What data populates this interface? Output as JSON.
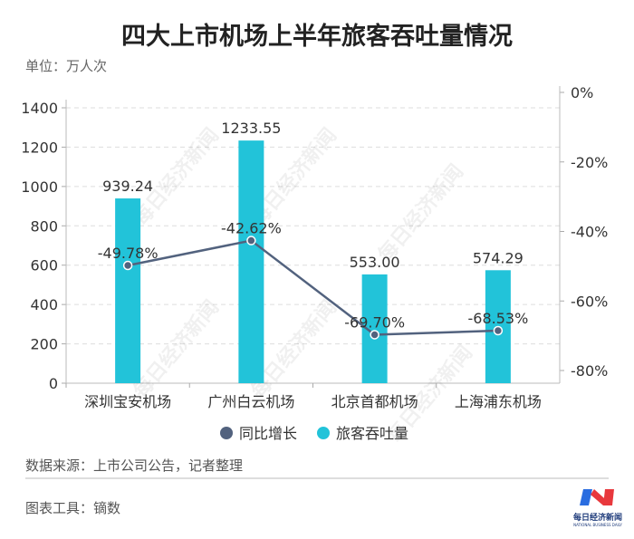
{
  "title": "四大上市机场上半年旅客吞吐量情况",
  "unit": "单位：万人次",
  "source": "数据来源：上市公司公告，记者整理",
  "tool": "图表工具：镝数",
  "logo": {
    "cn": "每日经济新闻",
    "en": "NATIONAL BUSINESS DAILY"
  },
  "watermark": "每日经济新闻",
  "chart_data": {
    "type": "bar+line",
    "categories": [
      "深圳宝安机场",
      "广州白云机场",
      "北京首都机场",
      "上海浦东机场"
    ],
    "series": [
      {
        "name": "旅客吞吐量",
        "type": "bar",
        "axis": "left",
        "color": "#22c3d9",
        "values": [
          939.24,
          1233.55,
          553.0,
          574.29
        ],
        "labels": [
          "939.24",
          "1233.55",
          "553.00",
          "574.29"
        ]
      },
      {
        "name": "同比增长",
        "type": "line",
        "axis": "right",
        "color": "#52627e",
        "values": [
          -49.78,
          -42.62,
          -69.7,
          -68.53
        ],
        "labels": [
          "-49.78%",
          "-42.62%",
          "-69.70%",
          "-68.53%"
        ]
      }
    ],
    "left_axis": {
      "ylim": [
        0,
        1400
      ],
      "ticks": [
        "0",
        "200",
        "400",
        "600",
        "800",
        "1000",
        "1200",
        "1400"
      ]
    },
    "right_axis": {
      "ylim": [
        -80,
        0
      ],
      "ticks": [
        "0%",
        "-20%",
        "-40%",
        "-60%",
        "-80%"
      ]
    },
    "grid": true,
    "legend": "bottom"
  }
}
